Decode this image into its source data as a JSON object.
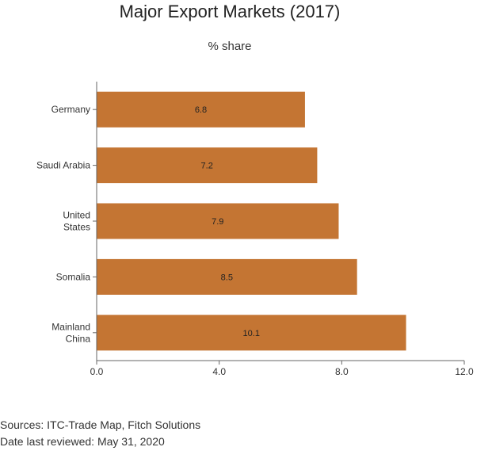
{
  "chart_data": {
    "type": "bar",
    "orientation": "horizontal",
    "title": "Major Export Markets (2017)",
    "subtitle": "% share",
    "categories": [
      [
        "Germany"
      ],
      [
        "Saudi Arabia"
      ],
      [
        "United",
        "States"
      ],
      [
        "Somalia"
      ],
      [
        "Mainland",
        "China"
      ]
    ],
    "values": [
      6.8,
      7.2,
      7.9,
      8.5,
      10.1
    ],
    "data_labels": [
      "6.8",
      "7.2",
      "7.9",
      "8.5",
      "10.1"
    ],
    "xlim": [
      0,
      12
    ],
    "x_ticks": [
      0,
      4,
      8,
      12
    ],
    "x_tick_labels": [
      "0.0",
      "4.0",
      "8.0",
      "12.0"
    ],
    "bar_color": "#c47533",
    "grid": false
  },
  "footer": {
    "sources": "Sources: ITC-Trade Map, Fitch Solutions",
    "reviewed": "Date last reviewed: May 31, 2020"
  }
}
